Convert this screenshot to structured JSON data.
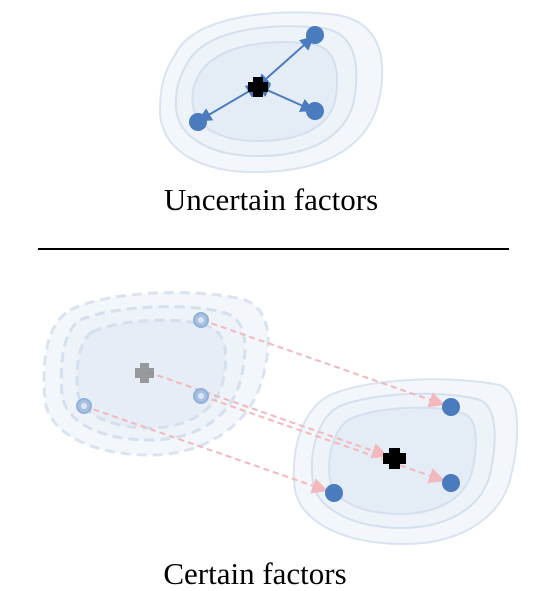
{
  "panels": {
    "uncertain": {
      "caption": "Uncertain factors"
    },
    "certain": {
      "caption": "Certain factors"
    }
  },
  "colors": {
    "region_fill_outer": "#f3f6fb",
    "region_fill_inner": "#e4ecf6",
    "region_stroke": "#d4e0ee",
    "point": "#4a7bbf",
    "arrow_blue": "#4a7bbf",
    "arrow_pink": "#f2b8be",
    "center_mark": "#000000",
    "center_mark_faded": "#8a8a8a",
    "divider": "#000000"
  },
  "icons": {
    "center": "plus-cross-icon",
    "point": "circle-dot-icon"
  }
}
